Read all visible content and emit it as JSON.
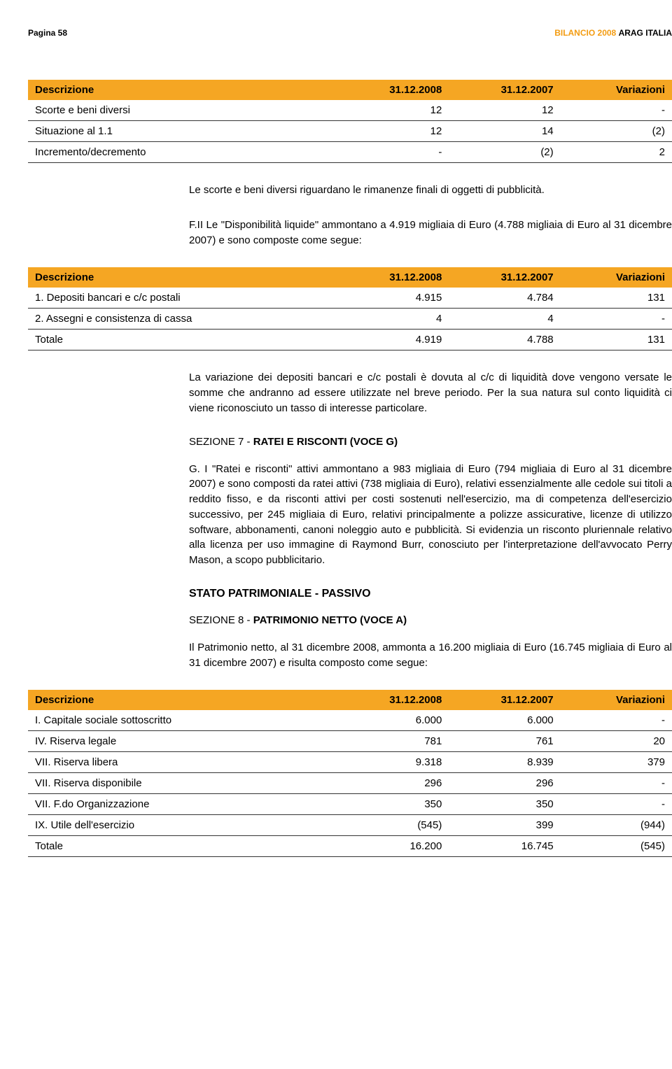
{
  "header": {
    "page_label": "Pagina 58",
    "title_orange": "BILANCIO 2008",
    "title_black": "ARAG ITALIA"
  },
  "columns": {
    "desc": "Descrizione",
    "y1": "31.12.2008",
    "y2": "31.12.2007",
    "var": "Variazioni"
  },
  "table1": {
    "rows": [
      {
        "d": "Scorte e beni diversi",
        "a": "12",
        "b": "12",
        "c": "-"
      },
      {
        "d": "Situazione al 1.1",
        "a": "12",
        "b": "14",
        "c": "(2)"
      },
      {
        "d": "Incremento/decremento",
        "a": "-",
        "b": "(2)",
        "c": "2"
      }
    ]
  },
  "para1": "Le scorte e beni diversi riguardano le rimanenze finali di oggetti di pubblicità.",
  "para2": "F.II Le \"Disponibilità liquide\" ammontano a 4.919 migliaia di Euro (4.788 migliaia di Euro al 31 dicembre 2007) e sono composte come segue:",
  "table2": {
    "rows": [
      {
        "d": "1. Depositi bancari e c/c postali",
        "a": "4.915",
        "b": "4.784",
        "c": "131"
      },
      {
        "d": "2. Assegni e consistenza di cassa",
        "a": "4",
        "b": "4",
        "c": "-"
      },
      {
        "d": "Totale",
        "a": "4.919",
        "b": "4.788",
        "c": "131"
      }
    ]
  },
  "para3": "La variazione dei depositi bancari e c/c postali è dovuta al c/c di liquidità dove vengono versate le somme che andranno ad essere utilizzate nel breve periodo. Per la sua natura sul conto liquidità ci viene riconosciuto un tasso di interesse particolare.",
  "sec7": {
    "pre": "SEZIONE 7 - ",
    "bold": "RATEI E RISCONTI (VOCE G)"
  },
  "para4": "G. I \"Ratei e risconti\" attivi ammontano a 983 migliaia di Euro (794 migliaia di Euro al 31 dicembre 2007) e sono composti da ratei attivi (738 migliaia di Euro), relativi essenzialmente alle cedole sui titoli a reddito fisso, e da risconti attivi per costi sostenuti nell'esercizio, ma di competenza dell'esercizio successivo, per 245 migliaia di Euro, relativi principalmente a polizze assicurative, licenze di utilizzo software, abbonamenti, canoni noleggio auto e pubblicità. Si evidenzia un risconto pluriennale relativo alla licenza per uso immagine di Raymond Burr, conosciuto per l'interpretazione dell'avvocato Perry Mason, a scopo pubblicitario.",
  "stato_title": "STATO PATRIMONIALE - PASSIVO",
  "sec8": {
    "pre": "SEZIONE 8 - ",
    "bold": "PATRIMONIO NETTO (VOCE A)"
  },
  "para5": "Il Patrimonio netto, al 31 dicembre 2008, ammonta a 16.200 migliaia di Euro (16.745 migliaia di Euro al 31 dicembre 2007) e risulta composto come segue:",
  "table3": {
    "rows": [
      {
        "d": "I. Capitale sociale sottoscritto",
        "a": "6.000",
        "b": "6.000",
        "c": "-"
      },
      {
        "d": "IV. Riserva legale",
        "a": "781",
        "b": "761",
        "c": "20"
      },
      {
        "d": "VII. Riserva libera",
        "a": "9.318",
        "b": "8.939",
        "c": "379"
      },
      {
        "d": "VII. Riserva disponibile",
        "a": "296",
        "b": "296",
        "c": "-"
      },
      {
        "d": "VII. F.do Organizzazione",
        "a": "350",
        "b": "350",
        "c": "-"
      },
      {
        "d": "IX. Utile dell'esercizio",
        "a": "(545)",
        "b": "399",
        "c": "(944)"
      },
      {
        "d": "Totale",
        "a": "16.200",
        "b": "16.745",
        "c": "(545)"
      }
    ]
  },
  "colors": {
    "header_bg": "#f5a623",
    "orange_text": "#f39c12"
  }
}
